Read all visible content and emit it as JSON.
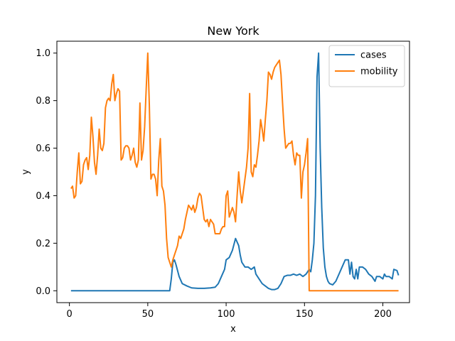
{
  "chart_data": {
    "type": "line",
    "title": "New York",
    "xlabel": "x",
    "ylabel": "y",
    "xlim": [
      -8,
      217
    ],
    "ylim": [
      -0.05,
      1.05
    ],
    "xticks": [
      0,
      50,
      100,
      150,
      200
    ],
    "yticks": [
      0.0,
      0.2,
      0.4,
      0.6,
      0.8,
      1.0
    ],
    "grid": false,
    "legend_position": "top-right",
    "series": [
      {
        "name": "cases",
        "color": "#1f77b4",
        "points": [
          [
            1,
            0
          ],
          [
            20,
            0
          ],
          [
            40,
            0
          ],
          [
            60,
            0
          ],
          [
            64,
            0
          ],
          [
            65,
            0.05
          ],
          [
            66,
            0.12
          ],
          [
            67,
            0.13
          ],
          [
            68,
            0.11
          ],
          [
            70,
            0.06
          ],
          [
            72,
            0.03
          ],
          [
            75,
            0.02
          ],
          [
            78,
            0.012
          ],
          [
            82,
            0.01
          ],
          [
            86,
            0.01
          ],
          [
            90,
            0.012
          ],
          [
            93,
            0.015
          ],
          [
            95,
            0.03
          ],
          [
            97,
            0.06
          ],
          [
            99,
            0.09
          ],
          [
            100,
            0.13
          ],
          [
            102,
            0.14
          ],
          [
            104,
            0.17
          ],
          [
            106,
            0.22
          ],
          [
            108,
            0.19
          ],
          [
            109,
            0.15
          ],
          [
            110,
            0.12
          ],
          [
            112,
            0.1
          ],
          [
            114,
            0.1
          ],
          [
            116,
            0.09
          ],
          [
            118,
            0.1
          ],
          [
            119,
            0.07
          ],
          [
            121,
            0.05
          ],
          [
            123,
            0.03
          ],
          [
            125,
            0.02
          ],
          [
            127,
            0.01
          ],
          [
            129,
            0.005
          ],
          [
            131,
            0.005
          ],
          [
            133,
            0.01
          ],
          [
            135,
            0.03
          ],
          [
            137,
            0.06
          ],
          [
            139,
            0.065
          ],
          [
            141,
            0.065
          ],
          [
            143,
            0.07
          ],
          [
            145,
            0.065
          ],
          [
            147,
            0.07
          ],
          [
            149,
            0.06
          ],
          [
            151,
            0.07
          ],
          [
            153,
            0.09
          ],
          [
            154,
            0.08
          ],
          [
            155,
            0.13
          ],
          [
            156,
            0.2
          ],
          [
            157,
            0.4
          ],
          [
            158,
            0.9
          ],
          [
            159,
            1.0
          ],
          [
            160,
            0.6
          ],
          [
            161,
            0.35
          ],
          [
            162,
            0.18
          ],
          [
            163,
            0.1
          ],
          [
            164,
            0.06
          ],
          [
            165,
            0.04
          ],
          [
            166,
            0.03
          ],
          [
            168,
            0.025
          ],
          [
            170,
            0.04
          ],
          [
            172,
            0.07
          ],
          [
            174,
            0.1
          ],
          [
            176,
            0.13
          ],
          [
            178,
            0.13
          ],
          [
            179,
            0.07
          ],
          [
            180,
            0.12
          ],
          [
            181,
            0.06
          ],
          [
            182,
            0.05
          ],
          [
            183,
            0.09
          ],
          [
            184,
            0.05
          ],
          [
            185,
            0.1
          ],
          [
            187,
            0.1
          ],
          [
            189,
            0.09
          ],
          [
            191,
            0.07
          ],
          [
            193,
            0.06
          ],
          [
            195,
            0.04
          ],
          [
            196,
            0.06
          ],
          [
            198,
            0.06
          ],
          [
            200,
            0.05
          ],
          [
            201,
            0.07
          ],
          [
            202,
            0.06
          ],
          [
            204,
            0.06
          ],
          [
            206,
            0.05
          ],
          [
            207,
            0.09
          ],
          [
            209,
            0.085
          ],
          [
            210,
            0.065
          ]
        ]
      },
      {
        "name": "mobility",
        "color": "#ff7f0e",
        "points": [
          [
            1,
            0.43
          ],
          [
            2,
            0.44
          ],
          [
            3,
            0.39
          ],
          [
            4,
            0.4
          ],
          [
            5,
            0.5
          ],
          [
            6,
            0.58
          ],
          [
            7,
            0.45
          ],
          [
            8,
            0.46
          ],
          [
            9,
            0.53
          ],
          [
            10,
            0.55
          ],
          [
            11,
            0.56
          ],
          [
            12,
            0.51
          ],
          [
            13,
            0.57
          ],
          [
            14,
            0.73
          ],
          [
            15,
            0.65
          ],
          [
            16,
            0.54
          ],
          [
            17,
            0.49
          ],
          [
            18,
            0.57
          ],
          [
            19,
            0.68
          ],
          [
            20,
            0.6
          ],
          [
            21,
            0.59
          ],
          [
            22,
            0.62
          ],
          [
            23,
            0.77
          ],
          [
            24,
            0.8
          ],
          [
            25,
            0.81
          ],
          [
            26,
            0.8
          ],
          [
            27,
            0.87
          ],
          [
            28,
            0.91
          ],
          [
            29,
            0.8
          ],
          [
            30,
            0.83
          ],
          [
            31,
            0.85
          ],
          [
            32,
            0.84
          ],
          [
            33,
            0.55
          ],
          [
            34,
            0.56
          ],
          [
            35,
            0.6
          ],
          [
            36,
            0.61
          ],
          [
            37,
            0.61
          ],
          [
            38,
            0.6
          ],
          [
            39,
            0.55
          ],
          [
            40,
            0.57
          ],
          [
            41,
            0.6
          ],
          [
            42,
            0.54
          ],
          [
            43,
            0.52
          ],
          [
            44,
            0.55
          ],
          [
            45,
            0.79
          ],
          [
            46,
            0.55
          ],
          [
            47,
            0.59
          ],
          [
            48,
            0.69
          ],
          [
            49,
            0.85
          ],
          [
            50,
            1.0
          ],
          [
            51,
            0.78
          ],
          [
            52,
            0.47
          ],
          [
            53,
            0.49
          ],
          [
            54,
            0.49
          ],
          [
            55,
            0.47
          ],
          [
            56,
            0.4
          ],
          [
            57,
            0.55
          ],
          [
            58,
            0.64
          ],
          [
            59,
            0.44
          ],
          [
            60,
            0.42
          ],
          [
            61,
            0.36
          ],
          [
            62,
            0.22
          ],
          [
            63,
            0.14
          ],
          [
            64,
            0.12
          ],
          [
            65,
            0.1
          ],
          [
            66,
            0.13
          ],
          [
            67,
            0.15
          ],
          [
            68,
            0.17
          ],
          [
            69,
            0.19
          ],
          [
            70,
            0.23
          ],
          [
            71,
            0.22
          ],
          [
            72,
            0.24
          ],
          [
            73,
            0.26
          ],
          [
            74,
            0.3
          ],
          [
            75,
            0.33
          ],
          [
            76,
            0.36
          ],
          [
            77,
            0.35
          ],
          [
            78,
            0.34
          ],
          [
            79,
            0.36
          ],
          [
            80,
            0.33
          ],
          [
            81,
            0.35
          ],
          [
            82,
            0.39
          ],
          [
            83,
            0.41
          ],
          [
            84,
            0.4
          ],
          [
            85,
            0.35
          ],
          [
            86,
            0.3
          ],
          [
            87,
            0.29
          ],
          [
            88,
            0.3
          ],
          [
            89,
            0.27
          ],
          [
            90,
            0.3
          ],
          [
            91,
            0.29
          ],
          [
            92,
            0.28
          ],
          [
            93,
            0.24
          ],
          [
            94,
            0.24
          ],
          [
            95,
            0.24
          ],
          [
            96,
            0.24
          ],
          [
            97,
            0.26
          ],
          [
            98,
            0.27
          ],
          [
            99,
            0.27
          ],
          [
            100,
            0.4
          ],
          [
            101,
            0.42
          ],
          [
            102,
            0.31
          ],
          [
            103,
            0.33
          ],
          [
            104,
            0.35
          ],
          [
            105,
            0.33
          ],
          [
            106,
            0.29
          ],
          [
            107,
            0.4
          ],
          [
            108,
            0.5
          ],
          [
            109,
            0.42
          ],
          [
            110,
            0.37
          ],
          [
            111,
            0.42
          ],
          [
            112,
            0.47
          ],
          [
            113,
            0.52
          ],
          [
            114,
            0.6
          ],
          [
            115,
            0.83
          ],
          [
            116,
            0.5
          ],
          [
            117,
            0.48
          ],
          [
            118,
            0.53
          ],
          [
            119,
            0.52
          ],
          [
            120,
            0.57
          ],
          [
            121,
            0.63
          ],
          [
            122,
            0.72
          ],
          [
            123,
            0.68
          ],
          [
            124,
            0.63
          ],
          [
            125,
            0.72
          ],
          [
            126,
            0.8
          ],
          [
            127,
            0.92
          ],
          [
            128,
            0.91
          ],
          [
            129,
            0.89
          ],
          [
            130,
            0.92
          ],
          [
            131,
            0.94
          ],
          [
            132,
            0.95
          ],
          [
            133,
            0.96
          ],
          [
            134,
            0.97
          ],
          [
            135,
            0.91
          ],
          [
            136,
            0.79
          ],
          [
            137,
            0.68
          ],
          [
            138,
            0.6
          ],
          [
            139,
            0.61
          ],
          [
            140,
            0.62
          ],
          [
            141,
            0.62
          ],
          [
            142,
            0.63
          ],
          [
            143,
            0.57
          ],
          [
            144,
            0.53
          ],
          [
            145,
            0.58
          ],
          [
            146,
            0.57
          ],
          [
            147,
            0.57
          ],
          [
            148,
            0.39
          ],
          [
            149,
            0.5
          ],
          [
            150,
            0.53
          ],
          [
            151,
            0.58
          ],
          [
            152,
            0.64
          ],
          [
            153,
            0.0
          ],
          [
            160,
            0.0
          ],
          [
            180,
            0.0
          ],
          [
            200,
            0.0
          ],
          [
            210,
            0.0
          ]
        ]
      }
    ]
  }
}
